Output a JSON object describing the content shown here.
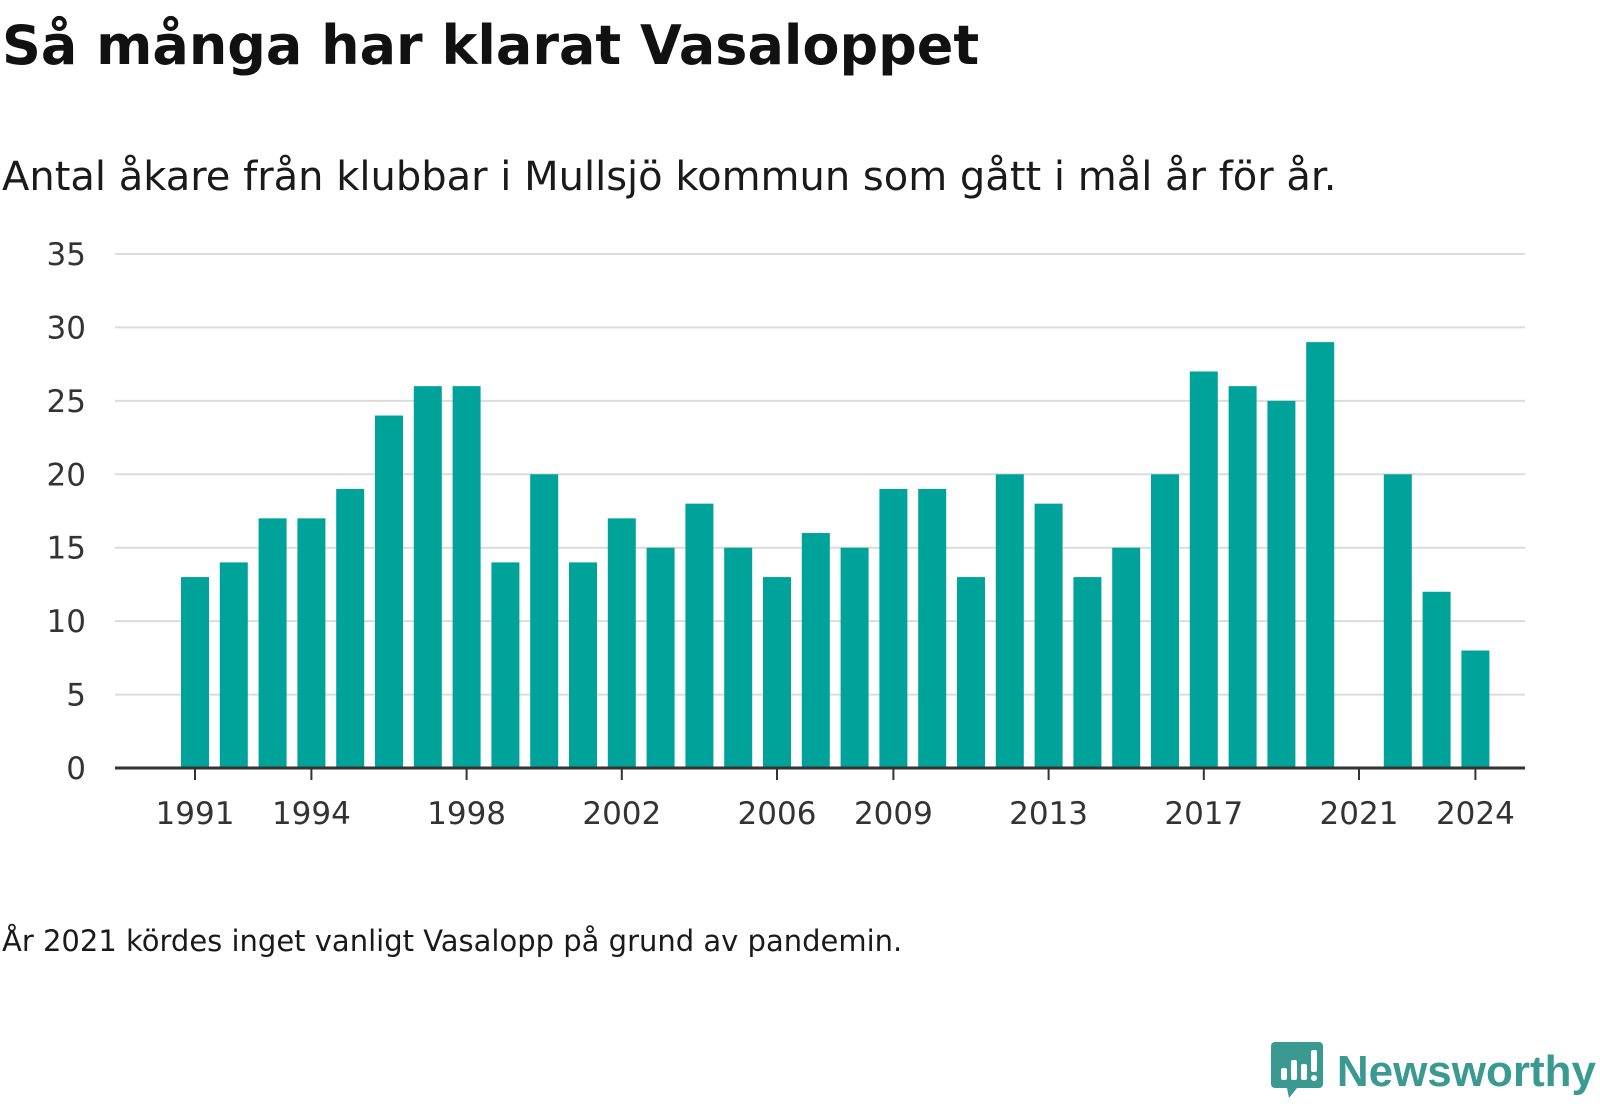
{
  "title": "Så många har klarat Vasaloppet",
  "subtitle": "Antal åkare från klubbar i Mullsjö kommun som gått i mål år för år.",
  "footnote": "År 2021 kördes inget vanligt Vasalopp på grund av pandemin.",
  "brand": {
    "name": "Newsworthy",
    "icon": "newsworthy-logo-icon"
  },
  "colors": {
    "bar": "#00a39a",
    "grid": "#dcdcdc",
    "axis": "#333333",
    "brand": "#3a9a92"
  },
  "chart_data": {
    "type": "bar",
    "categories": [
      1991,
      1992,
      1993,
      1994,
      1995,
      1996,
      1997,
      1998,
      1999,
      2000,
      2001,
      2002,
      2003,
      2004,
      2005,
      2006,
      2007,
      2008,
      2009,
      2010,
      2011,
      2012,
      2013,
      2014,
      2015,
      2016,
      2017,
      2018,
      2019,
      2020,
      2021,
      2022,
      2023,
      2024
    ],
    "values": [
      13,
      14,
      17,
      17,
      19,
      24,
      26,
      26,
      14,
      20,
      14,
      17,
      15,
      18,
      15,
      13,
      16,
      15,
      19,
      19,
      13,
      20,
      18,
      13,
      15,
      20,
      27,
      26,
      25,
      29,
      null,
      20,
      12,
      8
    ],
    "x_tick_labels": [
      "1991",
      "1994",
      "1998",
      "2002",
      "2006",
      "2009",
      "2013",
      "2017",
      "2021",
      "2024"
    ],
    "y_ticks": [
      0,
      5,
      10,
      15,
      20,
      25,
      30,
      35
    ],
    "ylim": [
      0,
      35
    ],
    "grid": true,
    "legend": "none"
  }
}
